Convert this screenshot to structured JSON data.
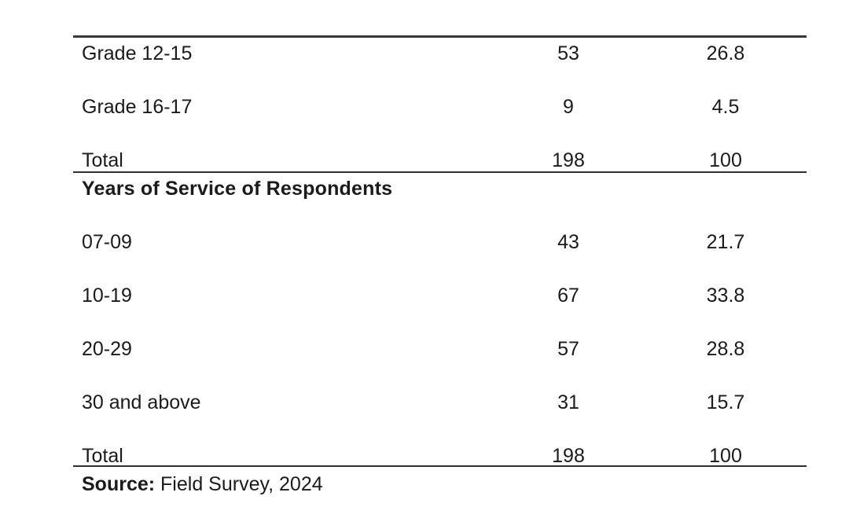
{
  "table": {
    "section_grade": {
      "rows": [
        {
          "label": "Grade 12-15",
          "frequency": "53",
          "percent": "26.8"
        },
        {
          "label": "Grade 16-17",
          "frequency": "9",
          "percent": "4.5"
        },
        {
          "label": "Total",
          "frequency": "198",
          "percent": "100"
        }
      ]
    },
    "section_service": {
      "header": "Years of Service of Respondents",
      "rows": [
        {
          "label": "07-09",
          "frequency": "43",
          "percent": "21.7"
        },
        {
          "label": "10-19",
          "frequency": "67",
          "percent": "33.8"
        },
        {
          "label": "20-29",
          "frequency": "57",
          "percent": "28.8"
        },
        {
          "label": "30 and above",
          "frequency": "31",
          "percent": "15.7"
        },
        {
          "label": "Total",
          "frequency": "198",
          "percent": "100"
        }
      ]
    },
    "source": {
      "label": "Source:",
      "text": " Field Survey, 2024"
    }
  },
  "colors": {
    "rule": "#383838",
    "text": "#1b1b1b",
    "background": "#ffffff"
  }
}
